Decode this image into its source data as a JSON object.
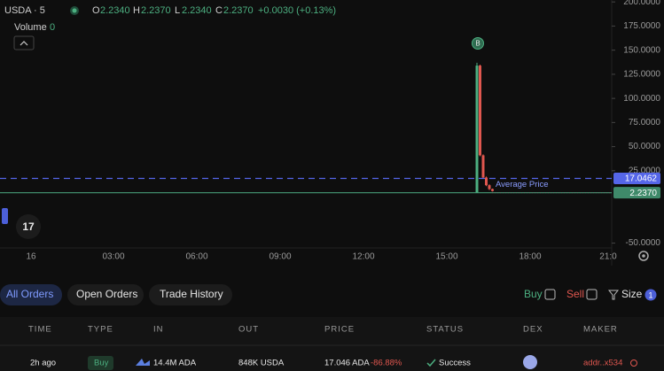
{
  "header": {
    "symbol": "USDA · 5",
    "ohlc": [
      {
        "key": "O",
        "value": "2.2340"
      },
      {
        "key": "H",
        "value": "2.2370"
      },
      {
        "key": "L",
        "value": "2.2340"
      },
      {
        "key": "C",
        "value": "2.2370"
      }
    ],
    "change": "+0.0030 (+0.13%)",
    "volume_label": "Volume",
    "volume": "0"
  },
  "chart": {
    "type": "candlestick",
    "ylim": [
      -55,
      202
    ],
    "yticks": [
      {
        "value": 200,
        "label": "200.0000"
      },
      {
        "value": 175,
        "label": "175.0000"
      },
      {
        "value": 150,
        "label": "150.0000"
      },
      {
        "value": 125,
        "label": "125.0000"
      },
      {
        "value": 100,
        "label": "100.0000"
      },
      {
        "value": 75,
        "label": "75.0000"
      },
      {
        "value": 50,
        "label": "50.0000"
      },
      {
        "value": 25,
        "label": "25.0000"
      },
      {
        "value": -50,
        "label": "-50.0000"
      }
    ],
    "xticks": [
      "16",
      "03:00",
      "06:00",
      "09:00",
      "12:00",
      "15:00",
      "18:00",
      "21:0"
    ],
    "candles": [
      {
        "open": 2.24,
        "high": 137,
        "low": 2.2,
        "close": 134
      },
      {
        "open": 134,
        "high": 135,
        "low": 40,
        "close": 41
      },
      {
        "open": 41,
        "high": 42,
        "low": 17,
        "close": 18
      },
      {
        "open": 18,
        "high": 19,
        "low": 9,
        "close": 10
      },
      {
        "open": 10,
        "high": 11,
        "low": 5,
        "close": 6
      },
      {
        "open": 6,
        "high": 6.5,
        "low": 3.5,
        "close": 4
      }
    ],
    "colors": {
      "up": "#4caf80",
      "down": "#e0574f"
    },
    "average_price": {
      "value": 17.0462,
      "label": "17.0462",
      "text": "Average Price",
      "color": "#5566e8"
    },
    "last_price": {
      "value": 2.237,
      "label": "2.2370",
      "color": "#3f8a6a"
    },
    "marker": "B"
  },
  "tabs": [
    "All Orders",
    "Open Orders",
    "Trade History"
  ],
  "filters": {
    "buy": "Buy",
    "sell": "Sell",
    "size": "Size",
    "size_count": "1"
  },
  "table": {
    "columns": [
      "TIME",
      "TYPE",
      "IN",
      "OUT",
      "PRICE",
      "STATUS",
      "DEX",
      "MAKER"
    ],
    "rows": [
      {
        "time": "2h ago",
        "type": "Buy",
        "in": "14.4M ADA",
        "out": "848K USDA",
        "price": "17.046 ADA",
        "change": "-86.88%",
        "status": "Success",
        "maker": "addr..x534"
      }
    ]
  }
}
